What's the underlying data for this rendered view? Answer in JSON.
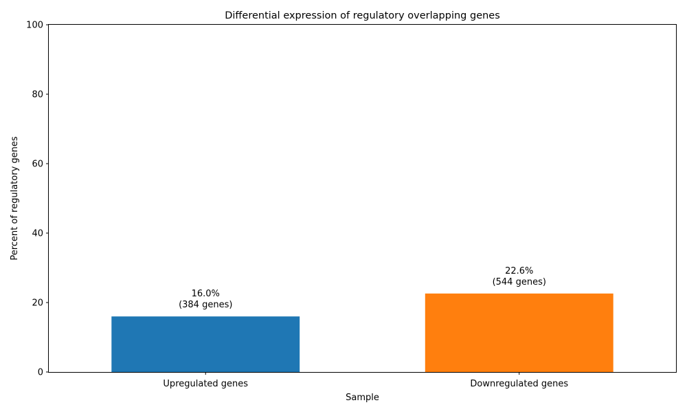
{
  "chart_data": {
    "type": "bar",
    "title": "Differential expression of regulatory overlapping genes",
    "xlabel": "Sample",
    "ylabel": "Percent of regulatory genes",
    "categories": [
      "Upregulated genes",
      "Downregulated genes"
    ],
    "values": [
      16.0,
      22.6
    ],
    "data_labels": [
      [
        "16.0%",
        "(384 genes)"
      ],
      [
        "22.6%",
        "(544 genes)"
      ]
    ],
    "colors": [
      "#1f77b4",
      "#ff7f0e"
    ],
    "ylim": [
      0,
      100
    ],
    "yticks": [
      0,
      20,
      40,
      60,
      80,
      100
    ],
    "grid": false,
    "legend": "none"
  }
}
